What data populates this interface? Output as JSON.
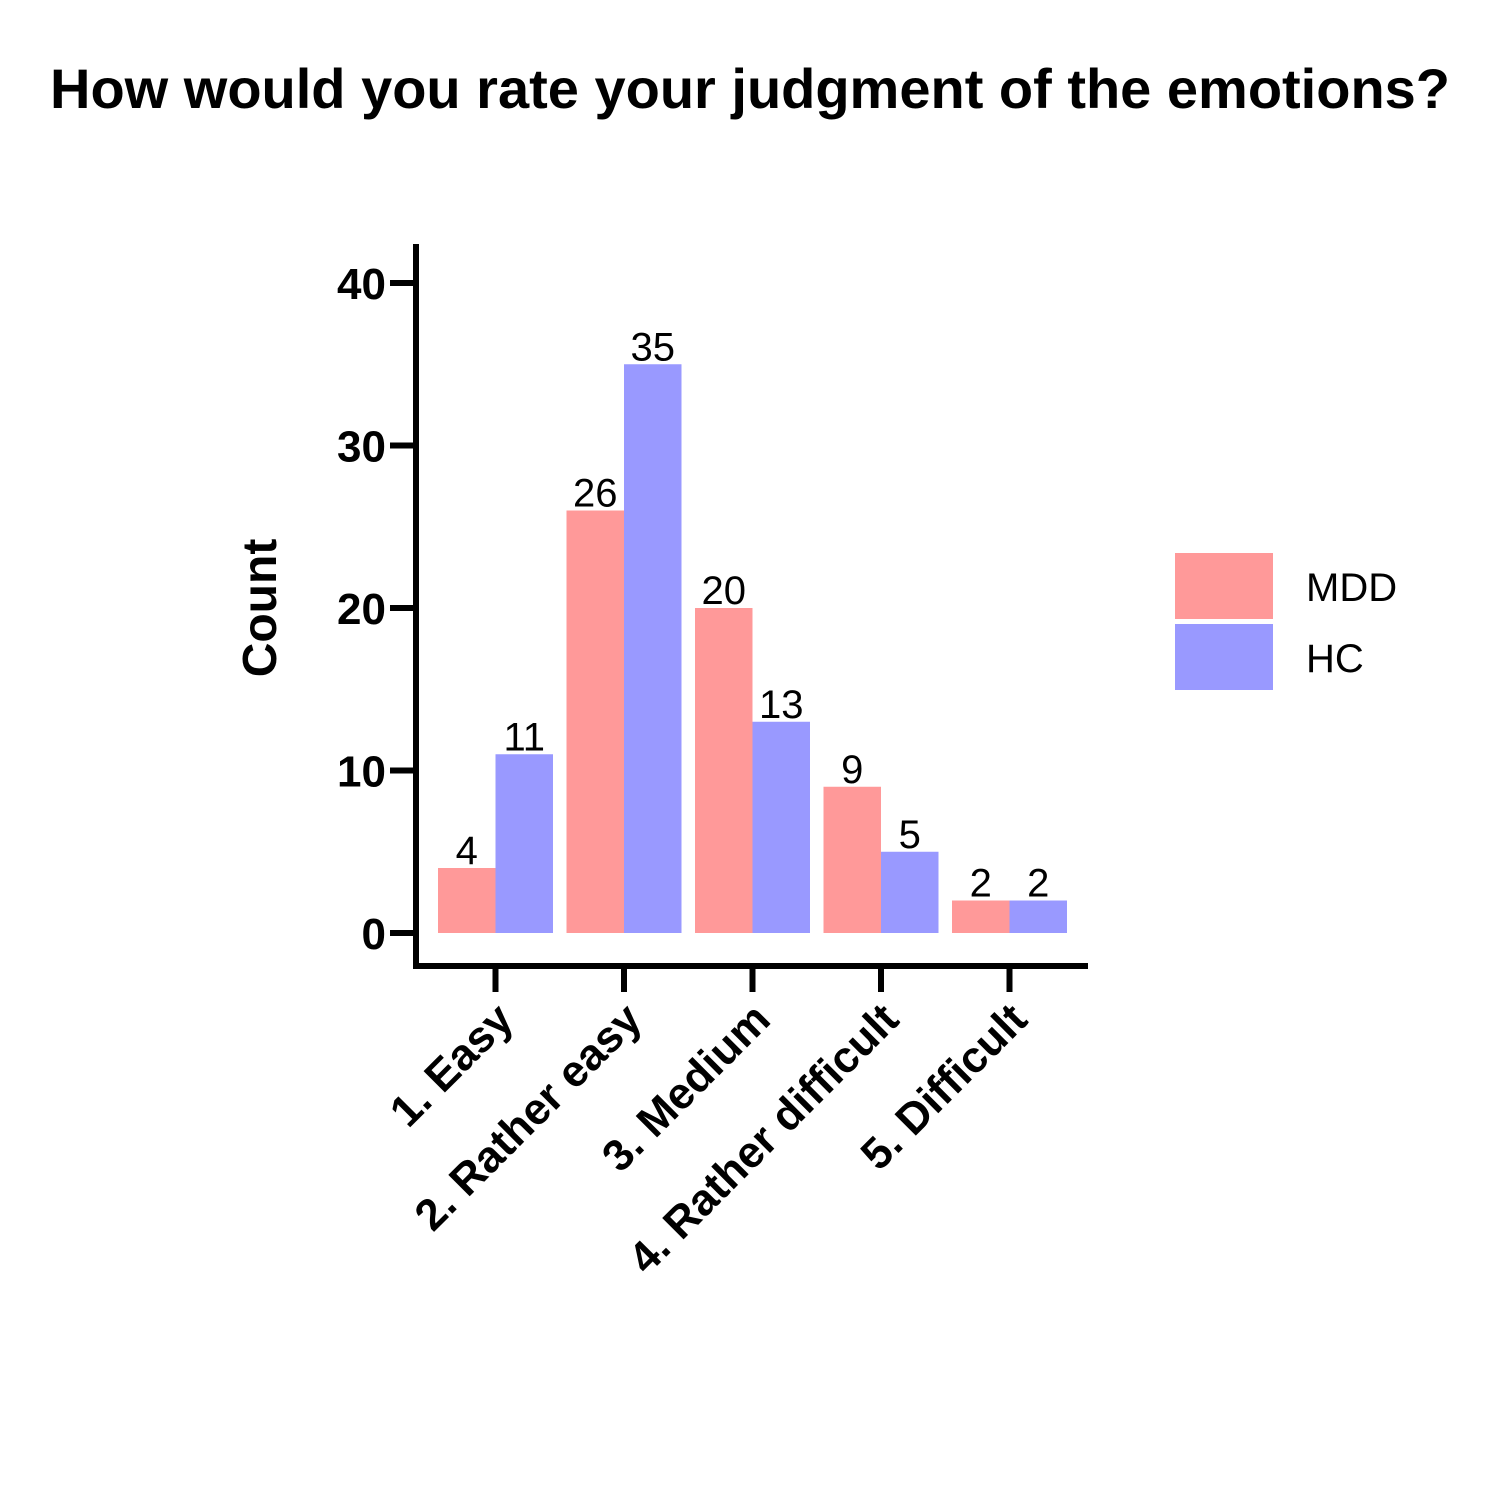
{
  "chart_data": {
    "type": "bar",
    "title": "How would you rate your judgment of the emotions?",
    "xlabel": "",
    "ylabel": "Count",
    "ylim": [
      0,
      42
    ],
    "yticks": [
      0,
      10,
      20,
      30,
      40
    ],
    "categories": [
      "1. Easy",
      "2. Rather easy",
      "3. Medium",
      "4. Rather difficult",
      "5. Difficult"
    ],
    "series": [
      {
        "name": "MDD",
        "values": [
          4,
          26,
          20,
          9,
          2
        ],
        "color": "#ff9999"
      },
      {
        "name": "HC",
        "values": [
          11,
          35,
          13,
          5,
          2
        ],
        "color": "#9999ff"
      }
    ],
    "grid": false,
    "legend_position": "right"
  }
}
